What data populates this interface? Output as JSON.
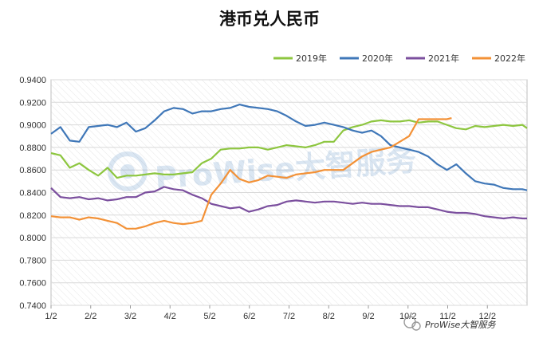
{
  "chart_data": {
    "type": "line",
    "title": "港币兑人民币",
    "xlabel": "",
    "ylabel": "",
    "ylim": [
      0.74,
      0.94
    ],
    "yticks": [
      "0.9400",
      "0.9200",
      "0.9000",
      "0.8800",
      "0.8600",
      "0.8400",
      "0.8200",
      "0.8000",
      "0.7800",
      "0.7600",
      "0.7400"
    ],
    "xticks": [
      "1/2",
      "2/2",
      "3/2",
      "4/2",
      "5/2",
      "6/2",
      "7/2",
      "8/2",
      "9/2",
      "10/2",
      "11/2",
      "12/2"
    ],
    "legend_position": "top-right",
    "grid": true,
    "series": [
      {
        "name": "2019年",
        "color": "#8dc63f",
        "points": [
          [
            0,
            0.875
          ],
          [
            2,
            0.873
          ],
          [
            4,
            0.862
          ],
          [
            6,
            0.866
          ],
          [
            8,
            0.86
          ],
          [
            10,
            0.855
          ],
          [
            12,
            0.862
          ],
          [
            14,
            0.853
          ],
          [
            16,
            0.855
          ],
          [
            18,
            0.855
          ],
          [
            20,
            0.856
          ],
          [
            22,
            0.857
          ],
          [
            24,
            0.856
          ],
          [
            26,
            0.856
          ],
          [
            28,
            0.857
          ],
          [
            30,
            0.858
          ],
          [
            32,
            0.866
          ],
          [
            34,
            0.87
          ],
          [
            36,
            0.878
          ],
          [
            38,
            0.879
          ],
          [
            40,
            0.879
          ],
          [
            42,
            0.88
          ],
          [
            44,
            0.88
          ],
          [
            46,
            0.878
          ],
          [
            48,
            0.88
          ],
          [
            50,
            0.882
          ],
          [
            52,
            0.881
          ],
          [
            54,
            0.88
          ],
          [
            56,
            0.882
          ],
          [
            58,
            0.885
          ],
          [
            60,
            0.885
          ],
          [
            62,
            0.895
          ],
          [
            64,
            0.898
          ],
          [
            66,
            0.9
          ],
          [
            68,
            0.903
          ],
          [
            70,
            0.904
          ],
          [
            72,
            0.903
          ],
          [
            74,
            0.903
          ],
          [
            76,
            0.904
          ],
          [
            78,
            0.902
          ],
          [
            80,
            0.903
          ],
          [
            82,
            0.903
          ],
          [
            84,
            0.9
          ],
          [
            86,
            0.897
          ],
          [
            88,
            0.896
          ],
          [
            90,
            0.899
          ],
          [
            92,
            0.898
          ],
          [
            94,
            0.899
          ],
          [
            96,
            0.9
          ],
          [
            98,
            0.899
          ],
          [
            100,
            0.9
          ],
          [
            101,
            0.897
          ]
        ]
      },
      {
        "name": "2020年",
        "color": "#3f77b8",
        "points": [
          [
            0,
            0.892
          ],
          [
            2,
            0.898
          ],
          [
            4,
            0.886
          ],
          [
            6,
            0.885
          ],
          [
            8,
            0.898
          ],
          [
            10,
            0.899
          ],
          [
            12,
            0.9
          ],
          [
            14,
            0.898
          ],
          [
            16,
            0.902
          ],
          [
            18,
            0.894
          ],
          [
            20,
            0.897
          ],
          [
            22,
            0.904
          ],
          [
            24,
            0.912
          ],
          [
            26,
            0.915
          ],
          [
            28,
            0.914
          ],
          [
            30,
            0.91
          ],
          [
            32,
            0.912
          ],
          [
            34,
            0.912
          ],
          [
            36,
            0.914
          ],
          [
            38,
            0.915
          ],
          [
            40,
            0.918
          ],
          [
            42,
            0.916
          ],
          [
            44,
            0.915
          ],
          [
            46,
            0.914
          ],
          [
            48,
            0.912
          ],
          [
            50,
            0.908
          ],
          [
            52,
            0.903
          ],
          [
            54,
            0.899
          ],
          [
            56,
            0.9
          ],
          [
            58,
            0.902
          ],
          [
            60,
            0.9
          ],
          [
            62,
            0.898
          ],
          [
            64,
            0.895
          ],
          [
            66,
            0.893
          ],
          [
            68,
            0.895
          ],
          [
            70,
            0.89
          ],
          [
            72,
            0.882
          ],
          [
            74,
            0.88
          ],
          [
            76,
            0.878
          ],
          [
            78,
            0.876
          ],
          [
            80,
            0.872
          ],
          [
            82,
            0.865
          ],
          [
            84,
            0.86
          ],
          [
            86,
            0.865
          ],
          [
            88,
            0.857
          ],
          [
            90,
            0.85
          ],
          [
            92,
            0.848
          ],
          [
            94,
            0.847
          ],
          [
            96,
            0.844
          ],
          [
            98,
            0.843
          ],
          [
            100,
            0.843
          ],
          [
            101,
            0.842
          ]
        ]
      },
      {
        "name": "2021年",
        "color": "#7b4f9e",
        "points": [
          [
            0,
            0.844
          ],
          [
            2,
            0.836
          ],
          [
            4,
            0.835
          ],
          [
            6,
            0.836
          ],
          [
            8,
            0.834
          ],
          [
            10,
            0.835
          ],
          [
            12,
            0.833
          ],
          [
            14,
            0.834
          ],
          [
            16,
            0.836
          ],
          [
            18,
            0.836
          ],
          [
            20,
            0.84
          ],
          [
            22,
            0.841
          ],
          [
            24,
            0.845
          ],
          [
            26,
            0.843
          ],
          [
            28,
            0.842
          ],
          [
            30,
            0.838
          ],
          [
            32,
            0.835
          ],
          [
            34,
            0.83
          ],
          [
            36,
            0.828
          ],
          [
            38,
            0.826
          ],
          [
            40,
            0.827
          ],
          [
            42,
            0.823
          ],
          [
            44,
            0.825
          ],
          [
            46,
            0.828
          ],
          [
            48,
            0.829
          ],
          [
            50,
            0.832
          ],
          [
            52,
            0.833
          ],
          [
            54,
            0.832
          ],
          [
            56,
            0.831
          ],
          [
            58,
            0.832
          ],
          [
            60,
            0.832
          ],
          [
            62,
            0.831
          ],
          [
            64,
            0.83
          ],
          [
            66,
            0.831
          ],
          [
            68,
            0.83
          ],
          [
            70,
            0.83
          ],
          [
            72,
            0.829
          ],
          [
            74,
            0.828
          ],
          [
            76,
            0.828
          ],
          [
            78,
            0.827
          ],
          [
            80,
            0.827
          ],
          [
            82,
            0.825
          ],
          [
            84,
            0.823
          ],
          [
            86,
            0.822
          ],
          [
            88,
            0.822
          ],
          [
            90,
            0.821
          ],
          [
            92,
            0.819
          ],
          [
            94,
            0.818
          ],
          [
            96,
            0.817
          ],
          [
            98,
            0.818
          ],
          [
            100,
            0.817
          ],
          [
            101,
            0.817
          ]
        ]
      },
      {
        "name": "2022年",
        "color": "#f39136",
        "points": [
          [
            0,
            0.819
          ],
          [
            2,
            0.818
          ],
          [
            4,
            0.818
          ],
          [
            6,
            0.816
          ],
          [
            8,
            0.818
          ],
          [
            10,
            0.817
          ],
          [
            12,
            0.815
          ],
          [
            14,
            0.813
          ],
          [
            16,
            0.808
          ],
          [
            18,
            0.808
          ],
          [
            20,
            0.81
          ],
          [
            22,
            0.813
          ],
          [
            24,
            0.815
          ],
          [
            26,
            0.813
          ],
          [
            28,
            0.812
          ],
          [
            30,
            0.813
          ],
          [
            32,
            0.815
          ],
          [
            34,
            0.838
          ],
          [
            36,
            0.848
          ],
          [
            38,
            0.86
          ],
          [
            40,
            0.852
          ],
          [
            42,
            0.849
          ],
          [
            44,
            0.851
          ],
          [
            46,
            0.855
          ],
          [
            48,
            0.854
          ],
          [
            50,
            0.853
          ],
          [
            52,
            0.856
          ],
          [
            54,
            0.857
          ],
          [
            56,
            0.858
          ],
          [
            58,
            0.86
          ],
          [
            60,
            0.86
          ],
          [
            62,
            0.86
          ],
          [
            64,
            0.866
          ],
          [
            66,
            0.872
          ],
          [
            68,
            0.876
          ],
          [
            70,
            0.878
          ],
          [
            72,
            0.88
          ],
          [
            74,
            0.885
          ],
          [
            76,
            0.89
          ],
          [
            78,
            0.905
          ],
          [
            80,
            0.905
          ],
          [
            82,
            0.905
          ],
          [
            84,
            0.905
          ],
          [
            85,
            0.906
          ]
        ]
      }
    ]
  },
  "watermarks": [
    "ProWise大智服务"
  ],
  "footer": {
    "logo_text": "ProWise大智服务"
  }
}
